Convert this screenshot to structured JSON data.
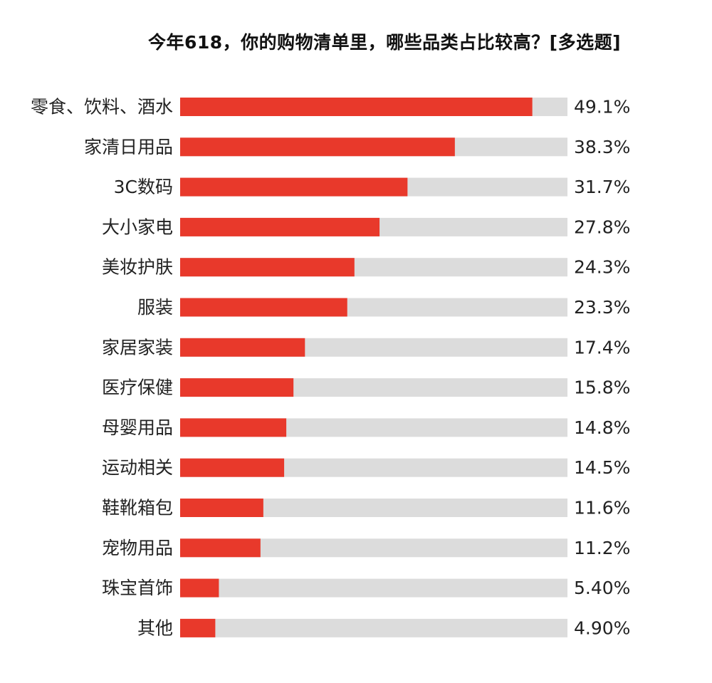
{
  "chart_data": {
    "type": "bar",
    "orientation": "horizontal",
    "title": "今年618，你的购物清单里，哪些品类占比较高？[多选题]",
    "categories": [
      "零食、饮料、酒水",
      "家清日用品",
      "3C数码",
      "大小家电",
      "美妆护肤",
      "服装",
      "家居家装",
      "医疗保健",
      "母婴用品",
      "运动相关",
      "鞋靴箱包",
      "宠物用品",
      "珠宝首饰",
      "其他"
    ],
    "values": [
      49.1,
      38.3,
      31.7,
      27.8,
      24.3,
      23.3,
      17.4,
      15.8,
      14.8,
      14.5,
      11.6,
      11.2,
      5.4,
      4.9
    ],
    "value_labels": [
      "49.1%",
      "38.3%",
      "31.7%",
      "27.8%",
      "24.3%",
      "23.3%",
      "17.4%",
      "15.8%",
      "14.8%",
      "14.5%",
      "11.6%",
      "11.2%",
      "5.40%",
      "4.90%"
    ],
    "xlim": [
      0,
      54
    ],
    "unit": "%",
    "grid": false,
    "legend": "none",
    "colors": {
      "bar": "#e8392b",
      "track": "#dcdcdc",
      "text": "#222222"
    }
  }
}
